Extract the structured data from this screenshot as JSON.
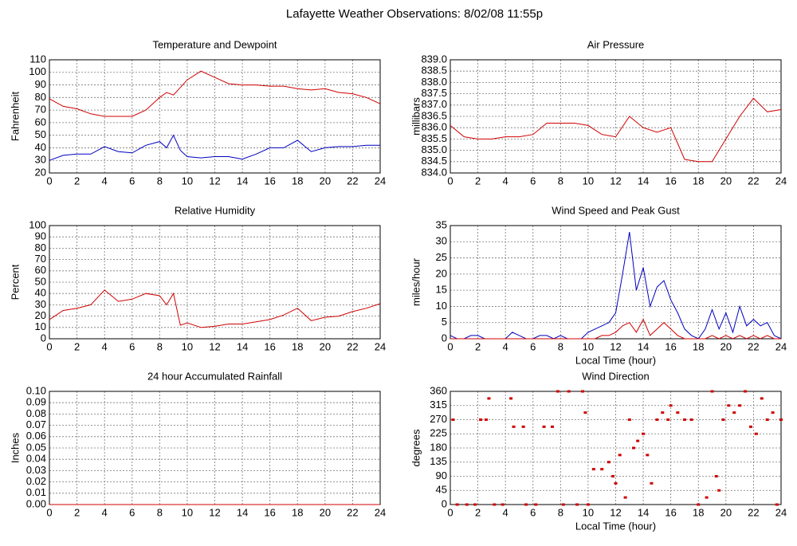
{
  "title": "Lafayette Weather Observations: 8/02/08 11:55p",
  "chart_data": [
    {
      "type": "line",
      "title": "Temperature and Dewpoint",
      "ylabel": "Fahrenheit",
      "x": [
        0,
        1,
        2,
        3,
        4,
        5,
        6,
        7,
        8,
        8.5,
        9,
        9.5,
        10,
        11,
        12,
        13,
        14,
        15,
        16,
        17,
        18,
        19,
        20,
        21,
        22,
        23,
        24
      ],
      "series": [
        {
          "name": "Temperature",
          "color": "#d00000",
          "values": [
            79,
            73,
            71,
            67,
            65,
            65,
            65,
            70,
            80,
            84,
            82,
            88,
            94,
            101,
            96,
            91,
            90,
            90,
            89,
            89,
            87,
            86,
            87,
            84,
            83,
            80,
            75
          ]
        },
        {
          "name": "Dewpoint",
          "color": "#0000c0",
          "values": [
            30,
            34,
            35,
            35,
            41,
            37,
            36,
            42,
            45,
            40,
            50,
            38,
            33,
            32,
            33,
            33,
            31,
            35,
            40,
            40,
            46,
            37,
            40,
            41,
            41,
            42,
            42
          ]
        }
      ],
      "xlim": [
        0,
        24
      ],
      "xticks": [
        0,
        2,
        4,
        6,
        8,
        10,
        12,
        14,
        16,
        18,
        20,
        22,
        24
      ],
      "ylim": [
        20,
        110
      ],
      "yticks": [
        20,
        30,
        40,
        50,
        60,
        70,
        80,
        90,
        100,
        110
      ],
      "grid": true
    },
    {
      "type": "line",
      "title": "Air Pressure",
      "ylabel": "millibars",
      "x": [
        0,
        1,
        2,
        3,
        4,
        5,
        6,
        7,
        8,
        9,
        10,
        11,
        12,
        13,
        14,
        15,
        16,
        17,
        18,
        19,
        20,
        21,
        22,
        23,
        24
      ],
      "series": [
        {
          "name": "Pressure",
          "color": "#d00000",
          "values": [
            836.1,
            835.6,
            835.5,
            835.5,
            835.6,
            835.6,
            835.7,
            836.2,
            836.2,
            836.2,
            836.1,
            835.7,
            835.6,
            836.5,
            836.0,
            835.8,
            836.0,
            834.6,
            834.5,
            834.5,
            835.5,
            836.5,
            837.3,
            836.7,
            836.8
          ]
        }
      ],
      "xlim": [
        0,
        24
      ],
      "xticks": [
        0,
        2,
        4,
        6,
        8,
        10,
        12,
        14,
        16,
        18,
        20,
        22,
        24
      ],
      "ylim": [
        834,
        839
      ],
      "yticks": [
        {
          "value": 834,
          "label": "834.0"
        },
        834.5,
        {
          "value": 835,
          "label": "835.0"
        },
        835.5,
        {
          "value": 836,
          "label": "836.0"
        },
        836.5,
        {
          "value": 837,
          "label": "837.0"
        },
        837.5,
        {
          "value": 838,
          "label": "838.0"
        },
        838.5,
        {
          "value": 839,
          "label": "839.0"
        }
      ],
      "grid": true
    },
    {
      "type": "line",
      "title": "Relative Humidity",
      "ylabel": "Percent",
      "x": [
        0,
        1,
        2,
        3,
        4,
        5,
        6,
        7,
        8,
        8.5,
        9,
        9.5,
        10,
        11,
        12,
        13,
        14,
        15,
        16,
        17,
        18,
        19,
        20,
        21,
        22,
        23,
        24
      ],
      "series": [
        {
          "name": "Humidity",
          "color": "#d00000",
          "values": [
            17,
            25,
            27,
            30,
            43,
            33,
            35,
            40,
            38,
            30,
            40,
            12,
            14,
            10,
            11,
            13,
            13,
            15,
            17,
            21,
            27,
            16,
            19,
            20,
            24,
            27,
            31
          ]
        }
      ],
      "xlim": [
        0,
        24
      ],
      "xticks": [
        0,
        2,
        4,
        6,
        8,
        10,
        12,
        14,
        16,
        18,
        20,
        22,
        24
      ],
      "ylim": [
        0,
        100
      ],
      "yticks": [
        0,
        10,
        20,
        30,
        40,
        50,
        60,
        70,
        80,
        90,
        100
      ],
      "grid": true
    },
    {
      "type": "line",
      "title": "Wind Speed and Peak Gust",
      "ylabel": "miles/hour",
      "xlabel": "Local Time (hour)",
      "x": [
        0,
        0.5,
        1,
        1.5,
        2,
        2.5,
        3,
        3.5,
        4,
        4.5,
        5,
        5.5,
        6,
        6.5,
        7,
        7.5,
        8,
        8.5,
        9,
        9.5,
        10,
        10.5,
        11,
        11.5,
        12,
        12.5,
        13,
        13.5,
        14,
        14.5,
        15,
        15.5,
        16,
        16.5,
        17,
        17.5,
        18,
        18.5,
        19,
        19.5,
        20,
        20.5,
        21,
        21.5,
        22,
        22.5,
        23,
        23.5,
        24
      ],
      "series": [
        {
          "name": "Peak Gust",
          "color": "#0000c0",
          "values": [
            1,
            0,
            0,
            1,
            1,
            0,
            0,
            0,
            0,
            2,
            1,
            0,
            0,
            1,
            1,
            0,
            1,
            0,
            0,
            0,
            2,
            3,
            4,
            5,
            8,
            20,
            33,
            15,
            22,
            10,
            16,
            18,
            12,
            8,
            3,
            1,
            0,
            3,
            9,
            3,
            8,
            2,
            10,
            4,
            6,
            4,
            5,
            1,
            0
          ]
        },
        {
          "name": "Wind Speed",
          "color": "#d00000",
          "values": [
            0,
            0,
            0,
            0,
            0,
            0,
            0,
            0,
            0,
            0,
            0,
            0,
            0,
            0,
            0,
            0,
            0,
            0,
            0,
            0,
            0,
            0,
            1,
            1,
            2,
            4,
            5,
            2,
            6,
            1,
            3,
            5,
            3,
            1,
            0,
            0,
            0,
            0,
            1,
            0,
            1,
            0,
            1,
            0,
            1,
            0,
            1,
            0,
            0
          ]
        }
      ],
      "xlim": [
        0,
        24
      ],
      "xticks": [
        0,
        2,
        4,
        6,
        8,
        10,
        12,
        14,
        16,
        18,
        20,
        22,
        24
      ],
      "ylim": [
        0,
        35
      ],
      "yticks": [
        0,
        5,
        10,
        15,
        20,
        25,
        30,
        35
      ],
      "grid": true
    },
    {
      "type": "line",
      "title": "24 hour Accumulated Rainfall",
      "ylabel": "Inches",
      "x": [
        0,
        24
      ],
      "series": [
        {
          "name": "Rainfall",
          "color": "#d00000",
          "values": [
            0,
            0
          ]
        }
      ],
      "xlim": [
        0,
        24
      ],
      "xticks": [
        0,
        2,
        4,
        6,
        8,
        10,
        12,
        14,
        16,
        18,
        20,
        22,
        24
      ],
      "ylim": [
        0,
        0.1
      ],
      "yticks": [
        {
          "value": 0,
          "label": "0.00"
        },
        0.01,
        0.02,
        0.03,
        0.04,
        0.05,
        0.06,
        0.07,
        0.08,
        0.09,
        {
          "value": 0.1,
          "label": "0.10"
        }
      ],
      "grid": true
    },
    {
      "type": "scatter",
      "title": "Wind Direction",
      "ylabel": "degrees",
      "xlabel": "Local Time (hour)",
      "series": [
        {
          "name": "Direction",
          "color": "#d00000",
          "x": [
            0.2,
            0.5,
            1.2,
            1.8,
            2.2,
            2.6,
            2.8,
            3.2,
            3.8,
            4.4,
            4.6,
            5.3,
            5.5,
            6.2,
            6.8,
            7.4,
            7.8,
            8.2,
            8.6,
            9.2,
            9.6,
            9.8,
            10,
            10.4,
            11,
            11.5,
            11.8,
            12,
            12.3,
            12.7,
            13,
            13.3,
            13.6,
            14,
            14.3,
            14.6,
            15,
            15.4,
            15.8,
            16,
            16.5,
            17,
            17.5,
            18,
            18.6,
            19,
            19.3,
            19.5,
            19.8,
            20.2,
            20.6,
            21,
            21.4,
            21.8,
            22.2,
            22.6,
            23,
            23.4,
            23.7,
            24
          ],
          "values": [
            270,
            0,
            0,
            0,
            270,
            270,
            337.5,
            0,
            0,
            337.5,
            247.5,
            247.5,
            0,
            0,
            247.5,
            247.5,
            360,
            0,
            360,
            0,
            360,
            292.5,
            0,
            112.5,
            112.5,
            135,
            90,
            67.5,
            157.5,
            22.5,
            270,
            180,
            202.5,
            225,
            157.5,
            67.5,
            270,
            292.5,
            270,
            315,
            292.5,
            270,
            270,
            0,
            22.5,
            360,
            90,
            45,
            270,
            315,
            292.5,
            315,
            360,
            247.5,
            225,
            337.5,
            270,
            292.5,
            0,
            270
          ]
        }
      ],
      "xlim": [
        0,
        24
      ],
      "xticks": [
        0,
        2,
        4,
        6,
        8,
        10,
        12,
        14,
        16,
        18,
        20,
        22,
        24
      ],
      "ylim": [
        0,
        360
      ],
      "yticks": [
        0,
        45,
        90,
        135,
        180,
        225,
        270,
        315,
        360
      ],
      "grid": true
    }
  ]
}
